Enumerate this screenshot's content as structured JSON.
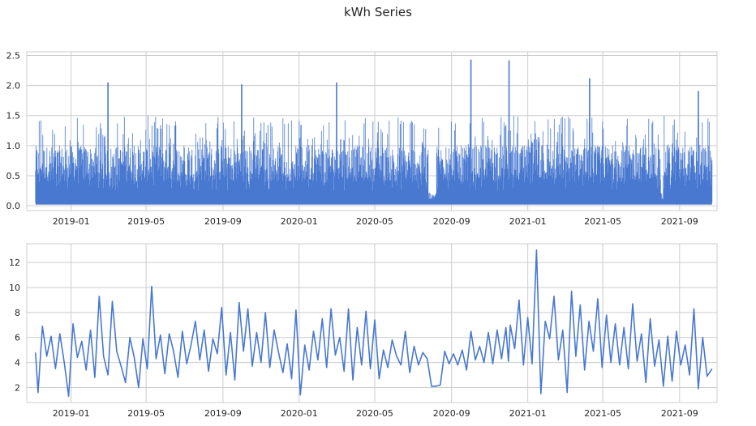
{
  "suptitle": "kWh Series",
  "colors": {
    "line": "#4878d0",
    "grid": "#cccccc",
    "text": "#262626"
  },
  "chart_data": [
    {
      "type": "line",
      "title": "",
      "xlabel": "",
      "ylabel": "",
      "grid": true,
      "x_range": [
        "2018-10-22",
        "2021-10-31"
      ],
      "x_start": "2018-11-05",
      "x_end": "2021-10-23",
      "x_ticks": [
        "2019-01",
        "2019-05",
        "2019-09",
        "2020-01",
        "2020-05",
        "2020-09",
        "2021-01",
        "2021-05",
        "2021-09"
      ],
      "ylim": [
        -0.08,
        2.56
      ],
      "y_ticks": [
        0.0,
        0.5,
        1.0,
        1.5,
        2.0,
        2.5
      ],
      "y_tick_labels": [
        "0.0",
        "0.5",
        "1.0",
        "1.5",
        "2.0",
        "2.5"
      ],
      "series_description": "High-frequency (half-hourly) kWh readings, baseline ~0.05–0.1 with dense spikes mostly 0.5–1.5",
      "baseline": 0.06,
      "typical_peak_range": [
        0.4,
        1.5
      ],
      "notable_peaks": [
        {
          "x": "2019-03-01",
          "y": 2.05
        },
        {
          "x": "2019-10-01",
          "y": 2.02
        },
        {
          "x": "2020-03-01",
          "y": 2.05
        },
        {
          "x": "2020-10-02",
          "y": 2.43
        },
        {
          "x": "2020-12-02",
          "y": 2.42
        },
        {
          "x": "2021-04-10",
          "y": 2.12
        },
        {
          "x": "2021-10-01",
          "y": 1.91
        }
      ],
      "quiet_periods": [
        [
          "2020-07-26",
          "2020-08-08"
        ],
        [
          "2021-08-02",
          "2021-08-06"
        ]
      ]
    },
    {
      "type": "line",
      "title": "",
      "xlabel": "",
      "ylabel": "",
      "grid": true,
      "x_range": [
        "2018-10-22",
        "2021-10-31"
      ],
      "x_ticks": [
        "2019-01",
        "2019-05",
        "2019-09",
        "2020-01",
        "2020-05",
        "2020-09",
        "2021-01",
        "2021-05",
        "2021-09"
      ],
      "ylim": [
        0.8,
        13.5
      ],
      "y_ticks": [
        2,
        4,
        6,
        8,
        10,
        12
      ],
      "y_tick_labels": [
        "2",
        "4",
        "6",
        "8",
        "10",
        "12"
      ],
      "series_description": "Daily total kWh",
      "x": [
        "2018-11-05",
        "2018-11-09",
        "2018-11-16",
        "2018-11-23",
        "2018-11-30",
        "2018-12-07",
        "2018-12-14",
        "2018-12-21",
        "2018-12-28",
        "2019-01-04",
        "2019-01-11",
        "2019-01-18",
        "2019-01-25",
        "2019-02-01",
        "2019-02-08",
        "2019-02-15",
        "2019-02-22",
        "2019-03-01",
        "2019-03-08",
        "2019-03-15",
        "2019-03-22",
        "2019-03-29",
        "2019-04-05",
        "2019-04-12",
        "2019-04-19",
        "2019-04-26",
        "2019-05-03",
        "2019-05-10",
        "2019-05-17",
        "2019-05-24",
        "2019-05-31",
        "2019-06-07",
        "2019-06-14",
        "2019-06-21",
        "2019-06-28",
        "2019-07-05",
        "2019-07-12",
        "2019-07-19",
        "2019-07-26",
        "2019-08-02",
        "2019-08-09",
        "2019-08-16",
        "2019-08-23",
        "2019-08-30",
        "2019-09-06",
        "2019-09-13",
        "2019-09-20",
        "2019-09-27",
        "2019-10-04",
        "2019-10-11",
        "2019-10-18",
        "2019-10-25",
        "2019-11-01",
        "2019-11-08",
        "2019-11-15",
        "2019-11-22",
        "2019-11-29",
        "2019-12-06",
        "2019-12-13",
        "2019-12-20",
        "2019-12-27",
        "2020-01-03",
        "2020-01-10",
        "2020-01-17",
        "2020-01-24",
        "2020-01-31",
        "2020-02-07",
        "2020-02-14",
        "2020-02-21",
        "2020-02-28",
        "2020-03-06",
        "2020-03-13",
        "2020-03-20",
        "2020-03-27",
        "2020-04-03",
        "2020-04-10",
        "2020-04-17",
        "2020-04-24",
        "2020-05-01",
        "2020-05-08",
        "2020-05-15",
        "2020-05-22",
        "2020-05-29",
        "2020-06-05",
        "2020-06-12",
        "2020-06-19",
        "2020-06-26",
        "2020-07-03",
        "2020-07-10",
        "2020-07-17",
        "2020-07-24",
        "2020-07-31",
        "2020-08-07",
        "2020-08-14",
        "2020-08-21",
        "2020-08-28",
        "2020-09-04",
        "2020-09-11",
        "2020-09-18",
        "2020-09-25",
        "2020-10-02",
        "2020-10-09",
        "2020-10-16",
        "2020-10-23",
        "2020-10-30",
        "2020-11-06",
        "2020-11-13",
        "2020-11-20",
        "2020-11-27",
        "2020-12-01",
        "2020-12-04",
        "2020-12-11",
        "2020-12-18",
        "2020-12-25",
        "2021-01-01",
        "2021-01-08",
        "2021-01-15",
        "2021-01-22",
        "2021-01-29",
        "2021-02-05",
        "2021-02-12",
        "2021-02-19",
        "2021-02-26",
        "2021-03-05",
        "2021-03-12",
        "2021-03-19",
        "2021-03-26",
        "2021-04-02",
        "2021-04-09",
        "2021-04-16",
        "2021-04-23",
        "2021-04-30",
        "2021-05-07",
        "2021-05-14",
        "2021-05-21",
        "2021-05-28",
        "2021-06-04",
        "2021-06-11",
        "2021-06-18",
        "2021-06-25",
        "2021-07-02",
        "2021-07-09",
        "2021-07-16",
        "2021-07-23",
        "2021-07-30",
        "2021-08-06",
        "2021-08-13",
        "2021-08-20",
        "2021-08-27",
        "2021-09-03",
        "2021-09-10",
        "2021-09-17",
        "2021-09-24",
        "2021-10-01",
        "2021-10-08",
        "2021-10-15",
        "2021-10-23"
      ],
      "values": [
        4.8,
        1.6,
        6.9,
        4.5,
        6.1,
        3.5,
        6.3,
        4.0,
        1.3,
        7.1,
        4.4,
        5.7,
        3.4,
        6.6,
        2.8,
        9.3,
        4.5,
        3.0,
        8.9,
        4.9,
        3.7,
        2.4,
        6.0,
        4.4,
        2.0,
        5.9,
        3.5,
        10.1,
        4.3,
        6.2,
        3.1,
        6.3,
        4.9,
        2.8,
        6.5,
        3.9,
        5.4,
        7.3,
        4.2,
        6.6,
        3.3,
        5.9,
        4.7,
        8.4,
        3.0,
        6.4,
        2.6,
        8.8,
        4.9,
        8.3,
        3.7,
        6.4,
        4.0,
        8.0,
        3.6,
        6.6,
        4.8,
        3.2,
        5.5,
        2.7,
        8.2,
        1.4,
        5.4,
        3.4,
        6.5,
        4.2,
        7.5,
        3.6,
        8.3,
        4.6,
        6.0,
        3.3,
        8.3,
        2.6,
        6.8,
        3.8,
        8.1,
        3.5,
        7.4,
        2.7,
        5.0,
        3.6,
        5.8,
        4.5,
        3.8,
        6.5,
        3.2,
        5.3,
        3.8,
        4.8,
        4.3,
        2.1,
        2.1,
        2.2,
        4.9,
        3.9,
        4.7,
        3.8,
        5.0,
        3.4,
        6.5,
        4.2,
        5.3,
        4.0,
        6.4,
        3.9,
        6.6,
        4.3,
        6.8,
        4.1,
        7.0,
        5.1,
        9.0,
        3.8,
        7.6,
        3.9,
        13.0,
        1.5,
        7.3,
        5.9,
        9.3,
        4.2,
        6.6,
        1.6,
        9.7,
        4.5,
        8.6,
        3.4,
        7.3,
        4.9,
        9.1,
        3.6,
        7.8,
        4.0,
        7.1,
        3.8,
        6.8,
        3.5,
        8.7,
        4.1,
        6.3,
        2.4,
        7.5,
        3.7,
        5.8,
        2.1,
        6.1,
        2.5,
        6.5,
        3.8,
        5.4,
        3.0,
        8.3,
        1.9,
        6.0,
        2.9,
        3.5
      ]
    }
  ]
}
